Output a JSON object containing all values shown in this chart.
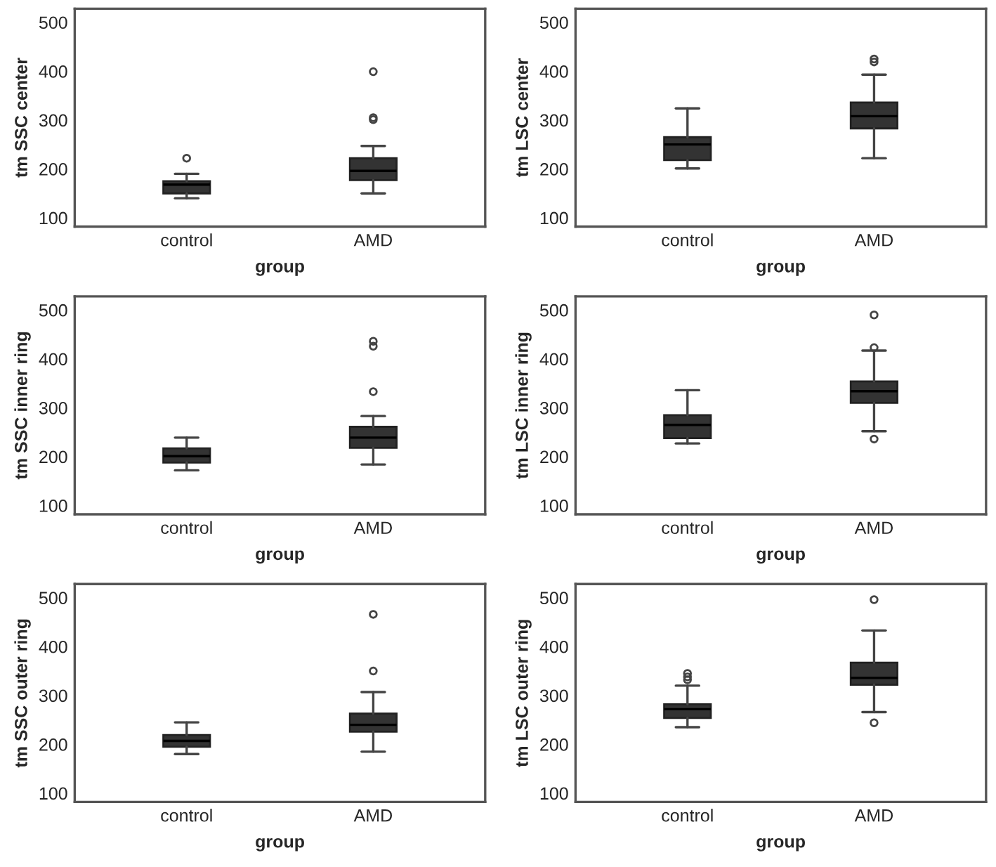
{
  "chart_data": [
    {
      "type": "box",
      "categories": [
        "control",
        "AMD"
      ],
      "xlabel": "group",
      "ylabel": "tm SSC center",
      "ylim": [
        82,
        528
      ],
      "yticks": [
        100,
        200,
        300,
        400,
        500
      ],
      "color": "#333333",
      "grid": false,
      "boxes": [
        {
          "low": 140,
          "q1": 150,
          "median": 168,
          "q3": 175,
          "high": 190,
          "outliers": [
            222
          ]
        },
        {
          "low": 150,
          "q1": 177,
          "median": 196,
          "q3": 222,
          "high": 247,
          "outliers": [
            301,
            305,
            399
          ]
        }
      ]
    },
    {
      "type": "box",
      "categories": [
        "control",
        "AMD"
      ],
      "xlabel": "group",
      "ylabel": "tm LSC center",
      "ylim": [
        82,
        528
      ],
      "yticks": [
        100,
        200,
        300,
        400,
        500
      ],
      "color": "#333333",
      "grid": false,
      "boxes": [
        {
          "low": 201,
          "q1": 218,
          "median": 250,
          "q3": 265,
          "high": 324
        },
        {
          "low": 222,
          "q1": 283,
          "median": 308,
          "q3": 336,
          "high": 393,
          "outliers": [
            419,
            425
          ]
        }
      ]
    },
    {
      "type": "box",
      "categories": [
        "control",
        "AMD"
      ],
      "xlabel": "group",
      "ylabel": "tm SSC inner ring",
      "ylim": [
        82,
        528
      ],
      "yticks": [
        100,
        200,
        300,
        400,
        500
      ],
      "color": "#333333",
      "grid": false,
      "boxes": [
        {
          "low": 172,
          "q1": 188,
          "median": 201,
          "q3": 217,
          "high": 239
        },
        {
          "low": 184,
          "q1": 218,
          "median": 239,
          "q3": 261,
          "high": 283,
          "outliers": [
            333,
            426,
            436
          ]
        }
      ]
    },
    {
      "type": "box",
      "categories": [
        "control",
        "AMD"
      ],
      "xlabel": "group",
      "ylabel": "tm LSC inner ring",
      "ylim": [
        82,
        528
      ],
      "yticks": [
        100,
        200,
        300,
        400,
        500
      ],
      "color": "#333333",
      "grid": false,
      "boxes": [
        {
          "low": 227,
          "q1": 238,
          "median": 265,
          "q3": 285,
          "high": 336
        },
        {
          "low": 252,
          "q1": 310,
          "median": 334,
          "q3": 354,
          "high": 417,
          "outliers": [
            236,
            423,
            490
          ]
        }
      ]
    },
    {
      "type": "box",
      "categories": [
        "control",
        "AMD"
      ],
      "xlabel": "group",
      "ylabel": "tm SSC outer ring",
      "ylim": [
        82,
        528
      ],
      "yticks": [
        100,
        200,
        300,
        400,
        500
      ],
      "color": "#333333",
      "grid": false,
      "boxes": [
        {
          "low": 180,
          "q1": 195,
          "median": 207,
          "q3": 219,
          "high": 245
        },
        {
          "low": 185,
          "q1": 226,
          "median": 240,
          "q3": 263,
          "high": 307,
          "outliers": [
            350,
            466
          ]
        }
      ]
    },
    {
      "type": "box",
      "categories": [
        "control",
        "AMD"
      ],
      "xlabel": "group",
      "ylabel": "tm LSC outer ring",
      "ylim": [
        82,
        528
      ],
      "yticks": [
        100,
        200,
        300,
        400,
        500
      ],
      "color": "#333333",
      "grid": false,
      "boxes": [
        {
          "low": 235,
          "q1": 254,
          "median": 272,
          "q3": 282,
          "high": 320,
          "outliers": [
            332,
            338,
            345
          ]
        },
        {
          "low": 266,
          "q1": 322,
          "median": 336,
          "q3": 367,
          "high": 433,
          "outliers": [
            244,
            496
          ]
        }
      ]
    }
  ]
}
